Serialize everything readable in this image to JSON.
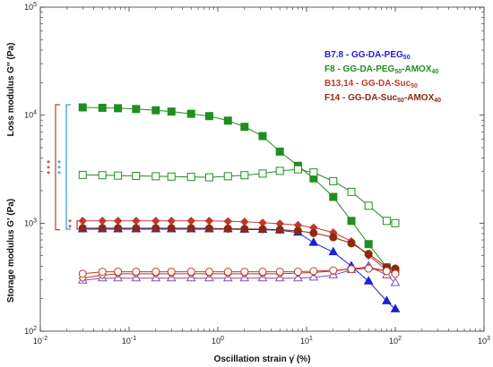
{
  "chart_data": {
    "type": "line",
    "x_scale": "log",
    "y_scale": "log",
    "xlim": [
      0.01,
      1000
    ],
    "ylim": [
      100,
      100000
    ],
    "x_ticks": [
      {
        "v": 0.01,
        "base": "10",
        "exp": "-2"
      },
      {
        "v": 0.1,
        "base": "10",
        "exp": "-1"
      },
      {
        "v": 1,
        "base": "10",
        "exp": "0"
      },
      {
        "v": 10,
        "base": "10",
        "exp": "1"
      },
      {
        "v": 100,
        "base": "10",
        "exp": "2"
      },
      {
        "v": 1000,
        "base": "10",
        "exp": "3"
      }
    ],
    "y_ticks": [
      {
        "v": 100,
        "base": "10",
        "exp": "2"
      },
      {
        "v": 1000,
        "base": "10",
        "exp": "3"
      },
      {
        "v": 10000,
        "base": "10",
        "exp": "4"
      },
      {
        "v": 100000,
        "base": "10",
        "exp": "5"
      }
    ],
    "xlabel": "Oscillation strain γ̇ (%)",
    "ylabel_loss": "Loss modulus G″ (Pa)",
    "ylabel_storage": "Storage modulus G′ (Pa)",
    "x": [
      0.03,
      0.05,
      0.075,
      0.12,
      0.2,
      0.3,
      0.5,
      0.8,
      1.3,
      2,
      3.2,
      5,
      8,
      12,
      20,
      32,
      50,
      80,
      100
    ],
    "legend": [
      {
        "label": "B7.8 - GG-DA-PEG",
        "sub": "50",
        "color": "#1f1fd6"
      },
      {
        "label": "F8 - GG-DA-PEG",
        "sub": "50",
        "label2": "-AMOX",
        "sub2": "40",
        "color": "#1f8f1f"
      },
      {
        "label": "B13,14 - GG-DA-Suc",
        "sub": "50",
        "color": "#c0392b"
      },
      {
        "label": "F14 - GG-DA-Suc",
        "sub": "50",
        "label2": "-AMOX",
        "sub2": "40",
        "color": "#8b2a10"
      }
    ],
    "series": [
      {
        "name": "B7.8 - GG-DA-PEG50",
        "modulus": "storage",
        "marker": "triangle",
        "fill": true,
        "color": "#1f1fd6",
        "values": [
          880,
          880,
          880,
          880,
          880,
          880,
          880,
          880,
          880,
          875,
          870,
          860,
          820,
          660,
          540,
          400,
          290,
          190,
          160
        ]
      },
      {
        "name": "B7.8 - GG-DA-PEG50",
        "modulus": "loss",
        "marker": "triangle",
        "fill": false,
        "color": "#7a4fc0",
        "values": [
          295,
          310,
          310,
          310,
          310,
          310,
          310,
          310,
          310,
          310,
          310,
          310,
          310,
          315,
          330,
          370,
          400,
          330,
          280
        ]
      },
      {
        "name": "F8 - GG-DA-PEG50-AMOX40",
        "modulus": "storage",
        "marker": "square",
        "fill": true,
        "color": "#1f8f1f",
        "values": [
          11800,
          11700,
          11600,
          11400,
          11100,
          10800,
          10300,
          9800,
          8900,
          7800,
          6400,
          4600,
          3400,
          2600,
          1750,
          1050,
          640,
          390,
          360
        ]
      },
      {
        "name": "F8 - GG-DA-PEG50-AMOX40",
        "modulus": "loss",
        "marker": "square",
        "fill": false,
        "color": "#1f8f1f",
        "values": [
          2800,
          2780,
          2760,
          2740,
          2720,
          2700,
          2680,
          2660,
          2720,
          2780,
          2880,
          3050,
          3150,
          2950,
          2450,
          1950,
          1450,
          1050,
          1000
        ]
      },
      {
        "name": "B13,14 - GG-DA-Suc50",
        "modulus": "storage",
        "marker": "diamond",
        "fill": true,
        "color": "#c0392b",
        "values": [
          1050,
          1050,
          1050,
          1050,
          1050,
          1050,
          1050,
          1050,
          1040,
          1030,
          1010,
          990,
          960,
          910,
          820,
          680,
          500,
          370,
          360
        ]
      },
      {
        "name": "B13,14 - GG-DA-Suc50",
        "modulus": "loss",
        "marker": "diamond",
        "fill": false,
        "color": "#c0392b",
        "values": [
          310,
          330,
          340,
          340,
          340,
          340,
          340,
          340,
          340,
          340,
          340,
          340,
          345,
          350,
          360,
          380,
          390,
          360,
          340
        ]
      },
      {
        "name": "F14 - GG-DA-Suc50-AMOX40",
        "modulus": "storage",
        "marker": "circle",
        "fill": true,
        "color": "#8b2a10",
        "values": [
          900,
          900,
          900,
          900,
          900,
          900,
          900,
          895,
          890,
          885,
          880,
          870,
          850,
          810,
          740,
          650,
          520,
          390,
          380
        ]
      },
      {
        "name": "F14 - GG-DA-Suc50-AMOX40",
        "modulus": "loss",
        "marker": "circle",
        "fill": false,
        "color": "#c0392b",
        "values": [
          340,
          355,
          355,
          355,
          355,
          355,
          355,
          355,
          355,
          355,
          355,
          355,
          355,
          360,
          365,
          375,
          380,
          360,
          340
        ]
      }
    ],
    "annotations": [
      {
        "type": "bracket",
        "color": "#c0392b",
        "y_from": 12500,
        "y_to": 870
      },
      {
        "type": "bracket",
        "color": "#2a9fd6",
        "y_from": 12500,
        "y_to": 880
      },
      {
        "type": "bracket",
        "color": "#c0392b",
        "y_from": 1050,
        "y_to": 880
      },
      {
        "type": "stars",
        "text": "*",
        "count": 3,
        "color": "#c0392b",
        "y": 3200
      },
      {
        "type": "stars",
        "text": "*",
        "count": 3,
        "color": "#2a9fd6",
        "y": 3200
      },
      {
        "type": "stars",
        "text": "*",
        "count": 2,
        "color": "#c0392b",
        "y": 960
      }
    ]
  }
}
